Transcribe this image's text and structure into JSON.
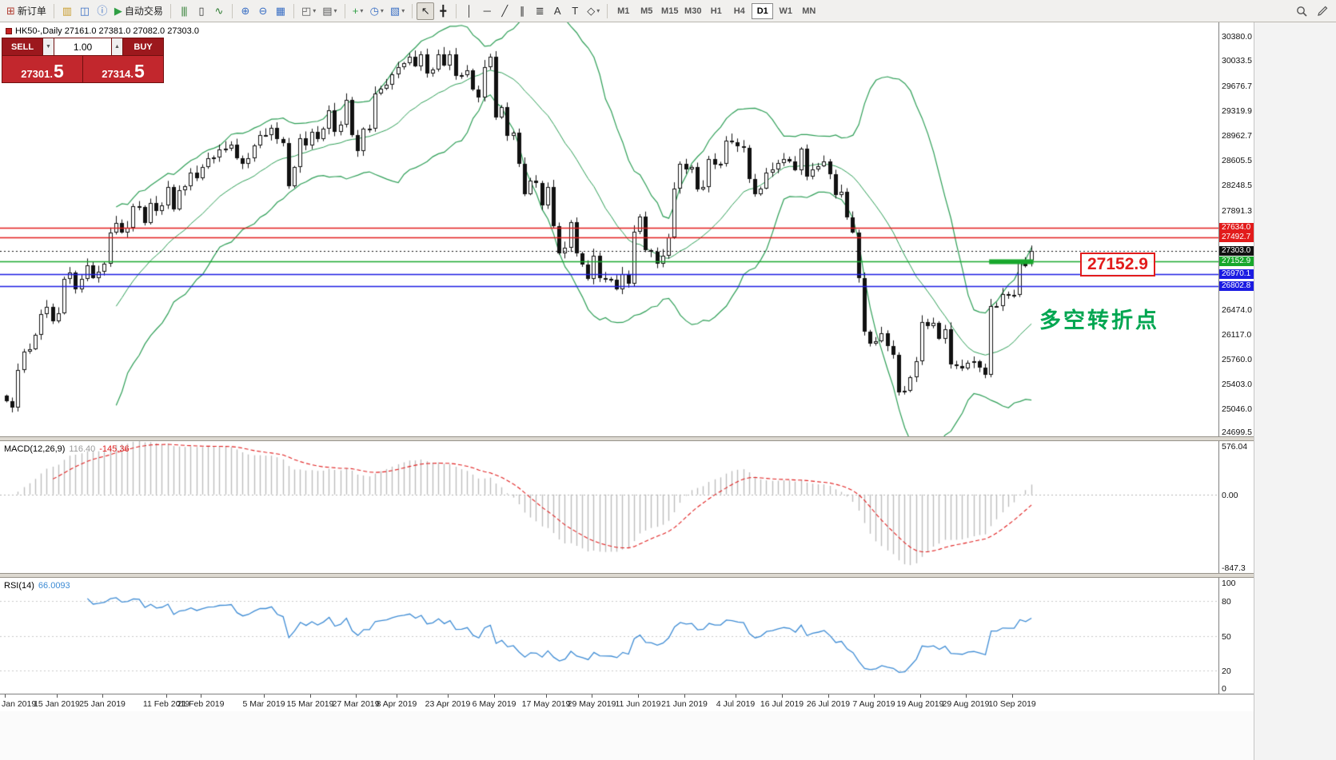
{
  "toolbar": {
    "caret_glyph": "▾",
    "groups": [
      {
        "name": "orders",
        "items": [
          {
            "name": "new-order-button",
            "glyph": "⊞",
            "glyph_color": "#b03a2e",
            "label": "新订单"
          }
        ]
      },
      {
        "name": "windows",
        "items": [
          {
            "name": "charts-window-icon",
            "glyph": "▥",
            "glyph_color": "#c89b2a"
          },
          {
            "name": "market-watch-icon",
            "glyph": "◫",
            "glyph_color": "#3a6fc4"
          },
          {
            "name": "data-window-icon",
            "glyph": "ⓘ",
            "glyph_color": "#3a6fc4"
          },
          {
            "name": "autotrading-button",
            "glyph": "▶",
            "glyph_color": "#2f9e44",
            "label": "自动交易"
          }
        ]
      },
      {
        "name": "chart-types",
        "items": [
          {
            "name": "bar-chart-icon",
            "glyph": "|||",
            "glyph_color": "#2f7d32"
          },
          {
            "name": "candlestick-chart-icon",
            "glyph": "▯",
            "glyph_color": "#333333"
          },
          {
            "name": "line-chart-icon",
            "glyph": "∿",
            "glyph_color": "#2f7d32"
          }
        ]
      },
      {
        "name": "zoom",
        "items": [
          {
            "name": "zoom-in-icon",
            "glyph": "⊕",
            "glyph_color": "#3a6fc4"
          },
          {
            "name": "zoom-out-icon",
            "glyph": "⊖",
            "glyph_color": "#3a6fc4"
          },
          {
            "name": "tile-windows-icon",
            "glyph": "▦",
            "glyph_color": "#3a6fc4"
          }
        ]
      },
      {
        "name": "layout",
        "items": [
          {
            "name": "cascade-windows-icon",
            "glyph": "◰",
            "glyph_color": "#555555",
            "caret": true
          },
          {
            "name": "arrange-windows-icon",
            "glyph": "▤",
            "glyph_color": "#555555",
            "caret": true
          }
        ]
      },
      {
        "name": "inserts",
        "items": [
          {
            "name": "indicators-icon",
            "glyph": "+",
            "glyph_color": "#2f9e44",
            "caret": true
          },
          {
            "name": "periods-icon",
            "glyph": "◷",
            "glyph_color": "#3a6fc4",
            "caret": true
          },
          {
            "name": "templates-icon",
            "glyph": "▧",
            "glyph_color": "#3a6fc4",
            "caret": true
          }
        ]
      },
      {
        "name": "cursor-tools",
        "items": [
          {
            "name": "cursor-icon",
            "glyph": "↖",
            "glyph_color": "#222222",
            "active": true
          },
          {
            "name": "crosshair-icon",
            "glyph": "╋",
            "glyph_color": "#222222"
          }
        ]
      },
      {
        "name": "draw-tools",
        "items": [
          {
            "name": "vertical-line-icon",
            "glyph": "│",
            "glyph_color": "#333333"
          },
          {
            "name": "horizontal-line-icon",
            "glyph": "─",
            "glyph_color": "#333333"
          },
          {
            "name": "trendline-icon",
            "glyph": "╱",
            "glyph_color": "#333333"
          },
          {
            "name": "channel-icon",
            "glyph": "∥",
            "glyph_color": "#333333"
          },
          {
            "name": "fibonacci-icon",
            "glyph": "≣",
            "glyph_color": "#333333"
          },
          {
            "name": "text-icon",
            "glyph": "A",
            "glyph_color": "#333333"
          },
          {
            "name": "label-icon",
            "glyph": "T",
            "glyph_color": "#333333"
          },
          {
            "name": "shapes-icon",
            "glyph": "◇",
            "glyph_color": "#333333",
            "caret": true
          }
        ]
      }
    ],
    "timeframes": [
      {
        "label": "M1"
      },
      {
        "label": "M5"
      },
      {
        "label": "M15"
      },
      {
        "label": "M30"
      },
      {
        "label": "H1"
      },
      {
        "label": "H4"
      },
      {
        "label": "D1",
        "active": true
      },
      {
        "label": "W1"
      },
      {
        "label": "MN"
      }
    ]
  },
  "chart_header": "HK50-,Daily  27161.0 27381.0 27082.0 27303.0",
  "trade_panel": {
    "sell_label": "SELL",
    "buy_label": "BUY",
    "volume": "1.00",
    "volume_down_glyph": "▼",
    "volume_up_glyph": "▲",
    "sell_price_base": "27301.",
    "sell_price_big": "5",
    "buy_price_base": "27314.",
    "buy_price_big": "5"
  },
  "annotations": {
    "price_flag": "27152.9",
    "turning_point": "多空转折点"
  },
  "chart_data": {
    "type": "candlestick-with-indicators",
    "symbol": "HK50-",
    "timeframe": "Daily",
    "ohlc_display": {
      "open": "27161.0",
      "high": "27381.0",
      "low": "27082.0",
      "close": "27303.0"
    },
    "price_scale": {
      "min": 24650,
      "max": 30575
    },
    "axis_labels": [
      "30380.0",
      "30033.5",
      "29676.7",
      "29319.9",
      "28962.7",
      "28605.5",
      "28248.5",
      "27891.3",
      "26474.0",
      "26117.0",
      "25760.0",
      "25403.0",
      "25046.0",
      "24699.5"
    ],
    "level_lines": [
      {
        "price": 27634.0,
        "label": "27634.0",
        "color": "#e21b1b",
        "style": "solid"
      },
      {
        "price": 27492.7,
        "label": "27492.7",
        "color": "#e21b1b",
        "style": "solid"
      },
      {
        "price": 27303.0,
        "label": "27303.0",
        "color": "#111111",
        "style": "dotted"
      },
      {
        "price": 27152.9,
        "label": "27152.9",
        "color": "#18a82c",
        "style": "solid",
        "thick_segment": {
          "from_index": 171,
          "to_index": 178
        }
      },
      {
        "price": 26970.1,
        "label": "26970.1",
        "color": "#1b1be2",
        "style": "solid"
      },
      {
        "price": 26802.8,
        "label": "26802.8",
        "color": "#1b1be2",
        "style": "solid"
      }
    ],
    "closes": [
      25150,
      25060,
      25600,
      25860,
      25900,
      26100,
      26400,
      26500,
      26300,
      26410,
      26900,
      27000,
      26750,
      26900,
      27100,
      26920,
      27010,
      27120,
      27570,
      27700,
      27570,
      27640,
      27940,
      27930,
      27700,
      27990,
      27880,
      27950,
      28220,
      27900,
      28170,
      28230,
      28430,
      28350,
      28500,
      28630,
      28640,
      28760,
      28770,
      28820,
      28630,
      28550,
      28630,
      28810,
      28960,
      28960,
      29060,
      28900,
      28850,
      28230,
      28500,
      28920,
      28810,
      29010,
      28900,
      29050,
      29320,
      29010,
      29110,
      29470,
      28960,
      28730,
      29050,
      29050,
      29560,
      29620,
      29680,
      29830,
      29940,
      29990,
      30080,
      29950,
      30120,
      29840,
      29900,
      30120,
      29960,
      30120,
      29810,
      29820,
      29890,
      29610,
      29500,
      29940,
      30080,
      29210,
      29360,
      28950,
      29000,
      28550,
      28120,
      28310,
      28280,
      27950,
      28220,
      27660,
      27270,
      27350,
      27710,
      27270,
      27110,
      26900,
      27240,
      26920,
      26900,
      26890,
      26760,
      26970,
      26840,
      27580,
      27790,
      27310,
      27290,
      27120,
      27230,
      27500,
      28200,
      28550,
      28470,
      28510,
      28190,
      28220,
      28620,
      28540,
      28550,
      28880,
      28860,
      28800,
      28780,
      28330,
      28120,
      28200,
      28430,
      28470,
      28560,
      28620,
      28590,
      28460,
      28770,
      28370,
      28470,
      28520,
      28590,
      28400,
      28110,
      28150,
      27780,
      27570,
      26920,
      26150,
      25980,
      26010,
      26120,
      25940,
      25820,
      25280,
      25300,
      25500,
      25730,
      26290,
      26230,
      26270,
      26050,
      26180,
      25680,
      25660,
      25620,
      25700,
      25720,
      25630,
      25530,
      26520,
      26520,
      26690,
      26680,
      26680,
      27160,
      27090,
      27303
    ],
    "last_candle": {
      "open": 27161,
      "high": 27381,
      "low": 27082,
      "close": 27303
    },
    "bollinger": {
      "period": 20,
      "deviation": 2
    },
    "macd": {
      "label": "MACD(12,26,9)",
      "value_main": "116.40",
      "value_signal": "-145.36",
      "scale": {
        "min": -847.3,
        "max": 576.04
      },
      "axis_labels": [
        "576.04",
        "0.00",
        "-847.3"
      ]
    },
    "rsi": {
      "label": "RSI(14)",
      "value": "66.0093",
      "scale": {
        "min": 0,
        "max": 100
      },
      "axis_labels": [
        "100",
        "80",
        "50",
        "20",
        "0"
      ],
      "levels": [
        80,
        50,
        20
      ]
    },
    "date_ticks": [
      {
        "label": "Jan 2019",
        "index": 0
      },
      {
        "label": "15 Jan 2019",
        "index": 9
      },
      {
        "label": "25 Jan 2019",
        "index": 17
      },
      {
        "label": "11 Feb 2019",
        "index": 28
      },
      {
        "label": "21 Feb 2019",
        "index": 34
      },
      {
        "label": "5 Mar 2019",
        "index": 45
      },
      {
        "label": "15 Mar 2019",
        "index": 53
      },
      {
        "label": "27 Mar 2019",
        "index": 61
      },
      {
        "label": "8 Apr 2019",
        "index": 68
      },
      {
        "label": "23 Apr 2019",
        "index": 77
      },
      {
        "label": "6 May 2019",
        "index": 85
      },
      {
        "label": "17 May 2019",
        "index": 94
      },
      {
        "label": "29 May 2019",
        "index": 102
      },
      {
        "label": "11 Jun 2019",
        "index": 110
      },
      {
        "label": "21 Jun 2019",
        "index": 118
      },
      {
        "label": "4 Jul 2019",
        "index": 127
      },
      {
        "label": "16 Jul 2019",
        "index": 135
      },
      {
        "label": "26 Jul 2019",
        "index": 143
      },
      {
        "label": "7 Aug 2019",
        "index": 151
      },
      {
        "label": "19 Aug 2019",
        "index": 159
      },
      {
        "label": "29 Aug 2019",
        "index": 167
      },
      {
        "label": "10 Sep 2019",
        "index": 175
      }
    ],
    "colors": {
      "bollinger": "#2d9e56",
      "candle_up": "#ffffff",
      "candle_down": "#111111",
      "candle_outline": "#111111",
      "macd_histogram": "#bdbdbd",
      "macd_signal": "#e02020",
      "rsi": "#3d8bd4",
      "level_green": "#18a82c",
      "level_red": "#e21b1b",
      "level_blue": "#1b1be2"
    }
  }
}
